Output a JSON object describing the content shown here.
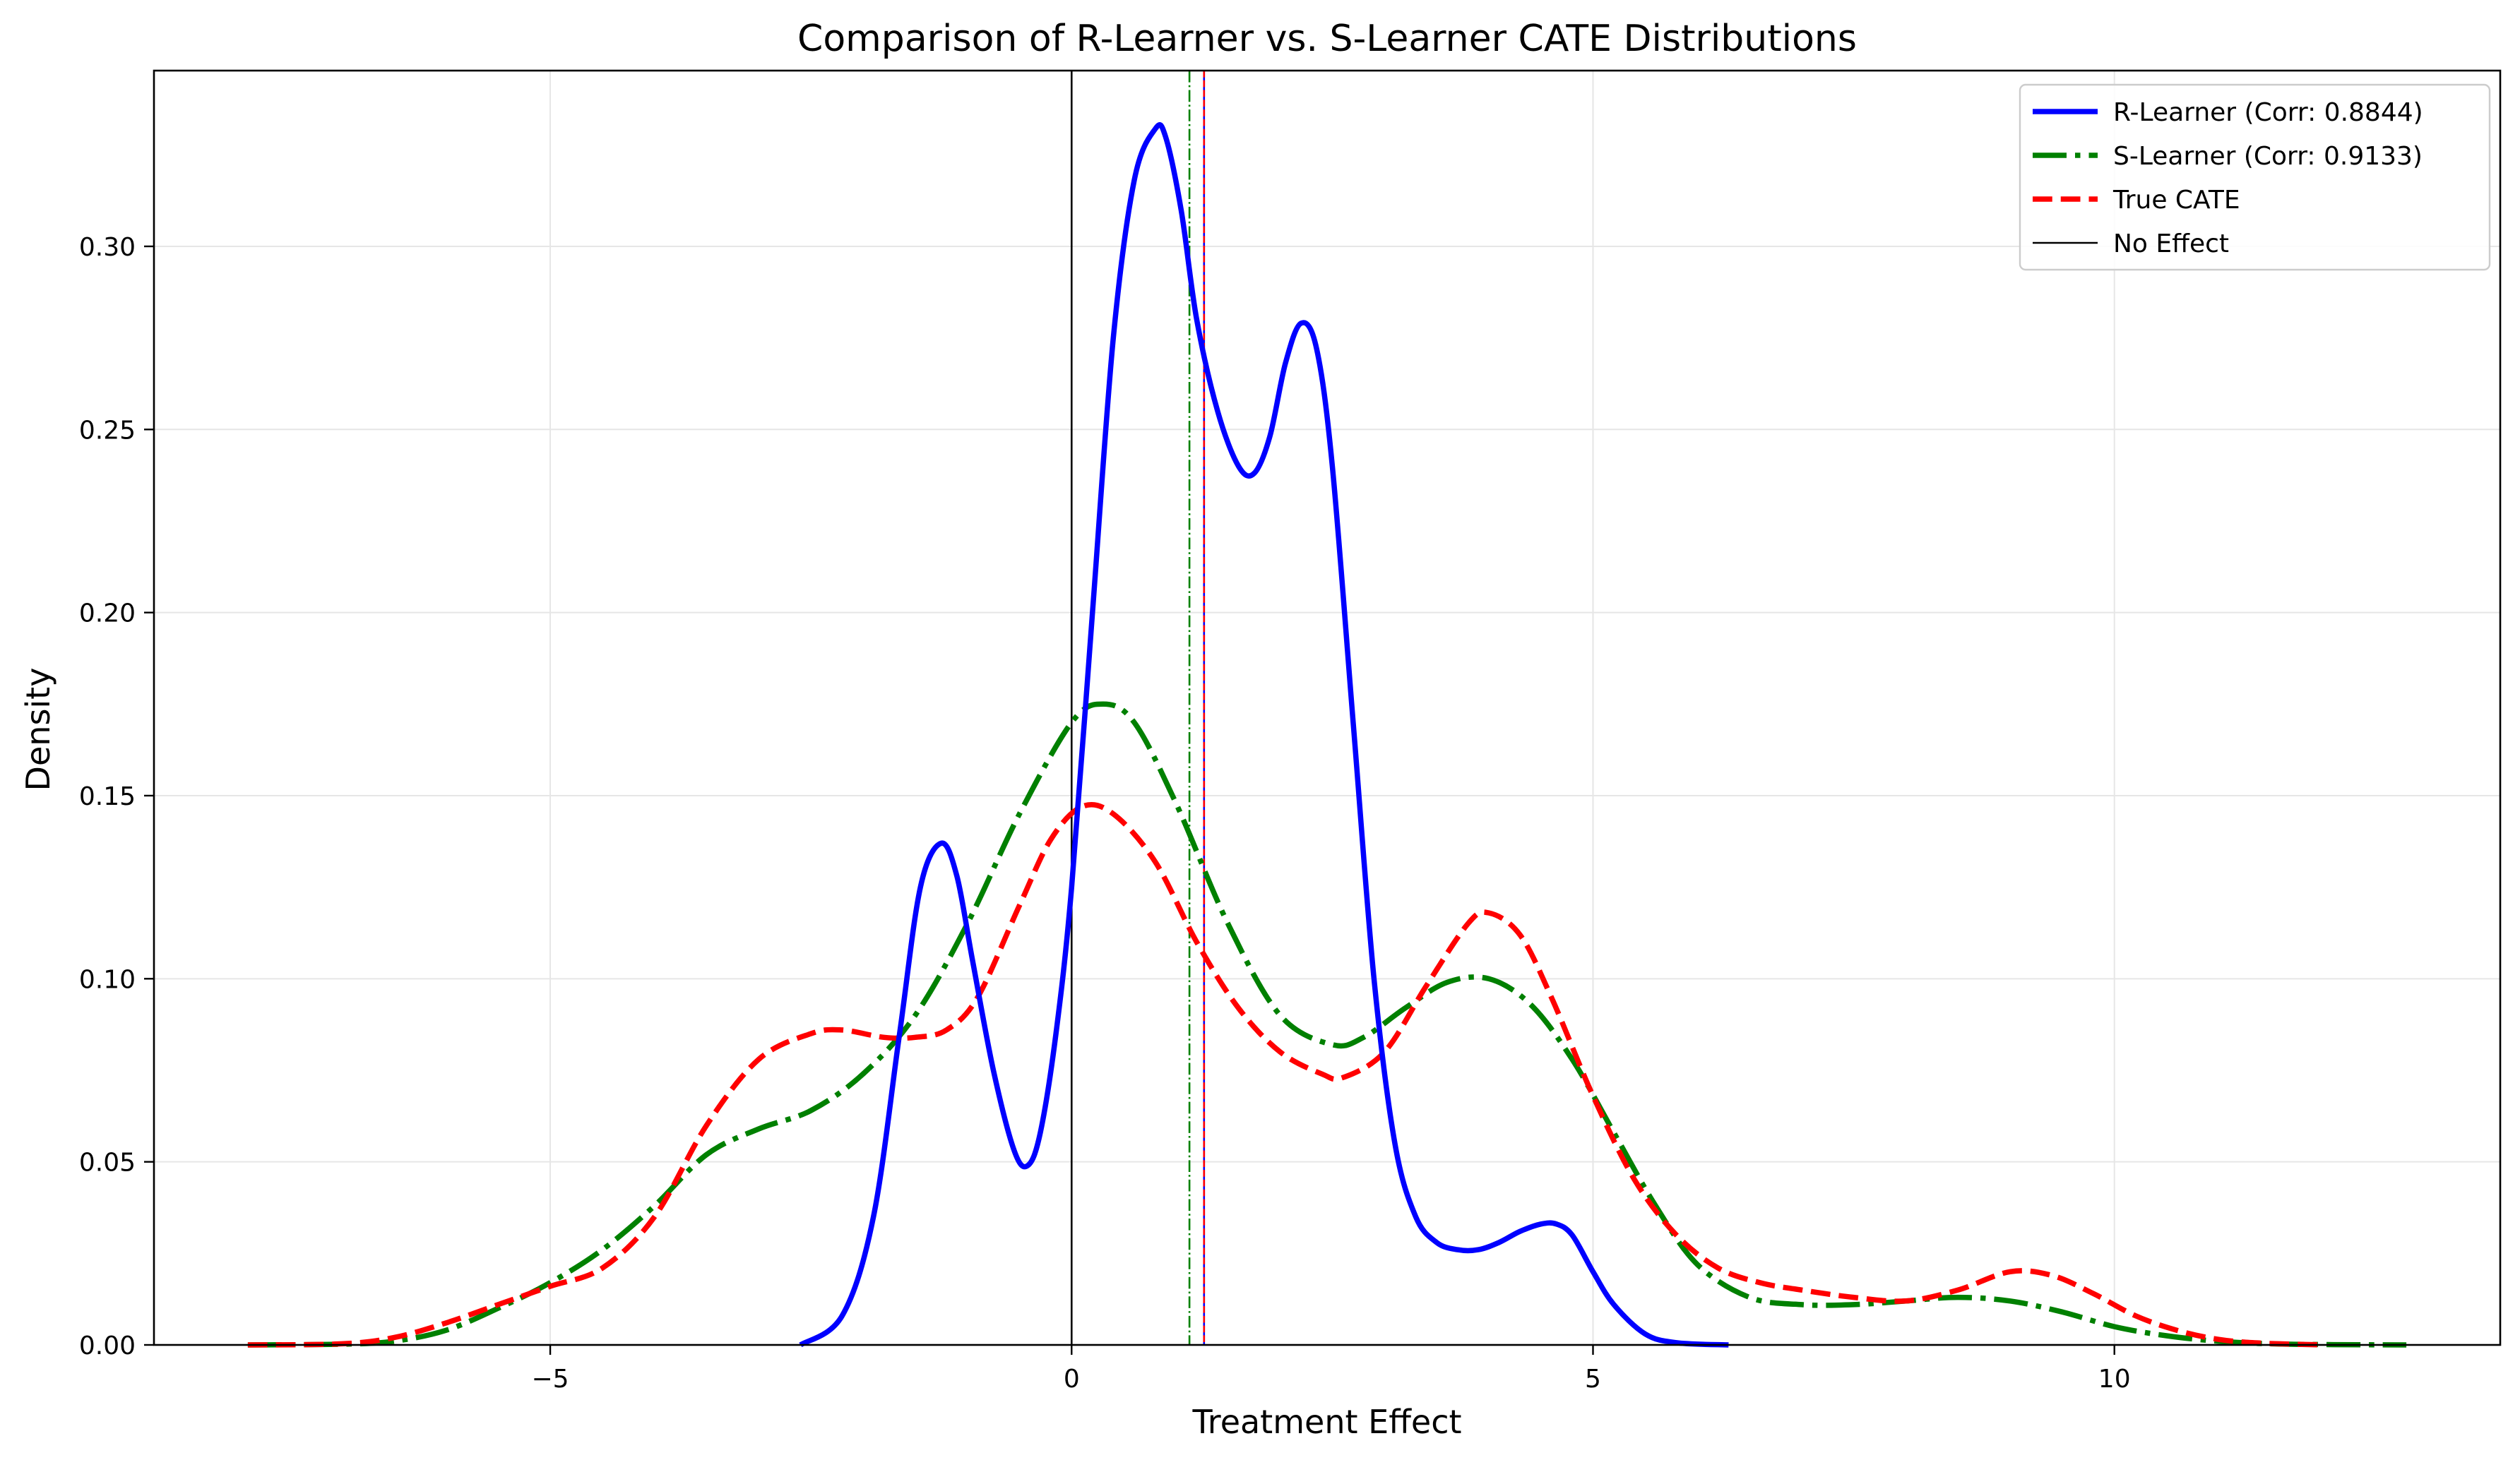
{
  "chart_data": {
    "type": "line",
    "title": "Comparison of R-Learner vs. S-Learner CATE Distributions",
    "xlabel": "Treatment Effect",
    "ylabel": "Density",
    "xlim": [
      -8.8,
      13.7
    ],
    "ylim": [
      0,
      0.348
    ],
    "xticks": [
      -5,
      0,
      5,
      10
    ],
    "xtick_labels": [
      "−5",
      "0",
      "5",
      "10"
    ],
    "yticks": [
      0.0,
      0.05,
      0.1,
      0.15,
      0.2,
      0.25,
      0.3
    ],
    "ytick_labels": [
      "0.00",
      "0.05",
      "0.10",
      "0.15",
      "0.20",
      "0.25",
      "0.30"
    ],
    "grid": true,
    "legend_position": "top-right",
    "series": [
      {
        "name": "R-Learner (Corr: 0.8844)",
        "color": "#0000ff",
        "style": "solid",
        "x": [
          -2.6,
          -2.2,
          -1.9,
          -1.65,
          -1.45,
          -1.25,
          -1.1,
          -0.95,
          -0.75,
          -0.55,
          -0.42,
          -0.3,
          -0.15,
          0.0,
          0.2,
          0.4,
          0.6,
          0.8,
          0.9,
          1.05,
          1.2,
          1.4,
          1.6,
          1.75,
          1.9,
          2.05,
          2.2,
          2.35,
          2.5,
          2.7,
          2.9,
          3.1,
          3.3,
          3.5,
          3.7,
          3.9,
          4.1,
          4.3,
          4.5,
          4.65,
          4.8,
          5.0,
          5.2,
          5.5,
          5.8,
          6.3
        ],
        "y": [
          0.0,
          0.008,
          0.035,
          0.085,
          0.125,
          0.137,
          0.128,
          0.105,
          0.075,
          0.053,
          0.049,
          0.058,
          0.085,
          0.125,
          0.2,
          0.275,
          0.318,
          0.332,
          0.33,
          0.31,
          0.28,
          0.255,
          0.24,
          0.238,
          0.248,
          0.268,
          0.279,
          0.272,
          0.24,
          0.17,
          0.1,
          0.055,
          0.035,
          0.028,
          0.026,
          0.026,
          0.028,
          0.031,
          0.033,
          0.033,
          0.03,
          0.02,
          0.011,
          0.003,
          0.0006,
          0.0
        ]
      },
      {
        "name": "S-Learner (Corr: 0.9133)",
        "color": "#008000",
        "style": "dashdot",
        "x": [
          -7.9,
          -7.0,
          -6.5,
          -6.0,
          -5.5,
          -5.0,
          -4.5,
          -4.0,
          -3.5,
          -3.0,
          -2.5,
          -2.0,
          -1.5,
          -1.0,
          -0.5,
          0.0,
          0.3,
          0.6,
          1.0,
          1.5,
          2.0,
          2.5,
          2.8,
          3.2,
          3.6,
          4.0,
          4.4,
          4.8,
          5.2,
          5.6,
          6.0,
          6.5,
          7.0,
          7.5,
          8.0,
          8.5,
          9.0,
          9.5,
          10.0,
          10.5,
          11.0,
          11.5,
          12.0,
          12.8
        ],
        "y": [
          0.0,
          0.0002,
          0.001,
          0.004,
          0.01,
          0.017,
          0.026,
          0.038,
          0.052,
          0.059,
          0.064,
          0.074,
          0.09,
          0.115,
          0.145,
          0.17,
          0.175,
          0.17,
          0.148,
          0.115,
          0.09,
          0.082,
          0.084,
          0.092,
          0.099,
          0.1,
          0.093,
          0.078,
          0.058,
          0.038,
          0.022,
          0.013,
          0.011,
          0.011,
          0.012,
          0.013,
          0.012,
          0.009,
          0.005,
          0.0025,
          0.001,
          0.0003,
          0.0001,
          0.0
        ]
      },
      {
        "name": "True CATE",
        "color": "#ff0000",
        "style": "dashed",
        "x": [
          -7.9,
          -7.0,
          -6.5,
          -6.0,
          -5.5,
          -5.0,
          -4.5,
          -4.0,
          -3.5,
          -3.0,
          -2.5,
          -2.2,
          -1.8,
          -1.5,
          -1.2,
          -0.9,
          -0.5,
          -0.2,
          0.1,
          0.4,
          0.8,
          1.2,
          1.6,
          2.0,
          2.4,
          2.6,
          3.0,
          3.4,
          3.8,
          4.0,
          4.3,
          4.6,
          5.0,
          5.4,
          5.8,
          6.2,
          6.6,
          7.0,
          7.5,
          8.0,
          8.5,
          9.0,
          9.4,
          9.8,
          10.2,
          10.6,
          11.0,
          11.4,
          12.0
        ],
        "y": [
          0.0,
          0.0003,
          0.002,
          0.006,
          0.011,
          0.016,
          0.021,
          0.035,
          0.06,
          0.078,
          0.085,
          0.086,
          0.084,
          0.084,
          0.086,
          0.095,
          0.12,
          0.138,
          0.147,
          0.145,
          0.132,
          0.11,
          0.092,
          0.08,
          0.074,
          0.073,
          0.08,
          0.098,
          0.115,
          0.118,
          0.112,
          0.095,
          0.068,
          0.045,
          0.03,
          0.021,
          0.017,
          0.015,
          0.013,
          0.012,
          0.015,
          0.02,
          0.019,
          0.014,
          0.008,
          0.004,
          0.0015,
          0.0005,
          0.0
        ]
      }
    ],
    "reference_lines": [
      {
        "name": "No Effect",
        "x": 0,
        "color": "#000000",
        "style": "solid"
      },
      {
        "x": 1.13,
        "color": "#008000",
        "style": "dashdot"
      },
      {
        "x": 1.27,
        "color": "#0000ff",
        "style": "solid"
      },
      {
        "x": 1.27,
        "color": "#ff0000",
        "style": "dashed"
      }
    ],
    "legend": [
      {
        "label": "R-Learner (Corr: 0.8844)",
        "color": "#0000ff",
        "style": "solid"
      },
      {
        "label": "S-Learner (Corr: 0.9133)",
        "color": "#008000",
        "style": "dashdot"
      },
      {
        "label": "True CATE",
        "color": "#ff0000",
        "style": "dashed"
      },
      {
        "label": "No Effect",
        "color": "#000000",
        "style": "thin"
      }
    ]
  }
}
